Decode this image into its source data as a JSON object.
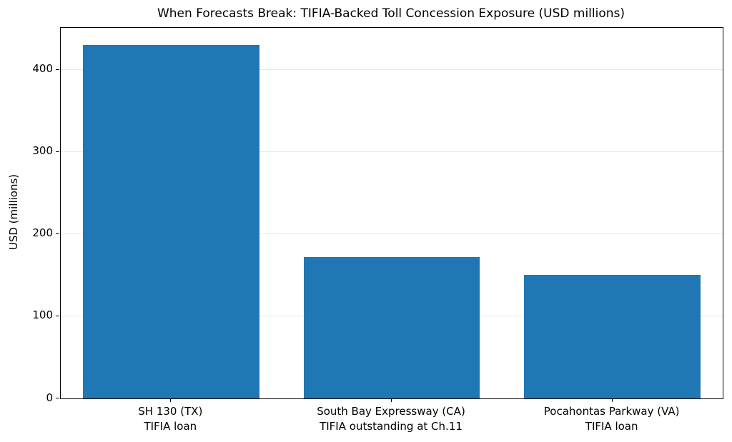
{
  "chart_data": {
    "type": "bar",
    "title": "When Forecasts Break: TIFIA-Backed Toll Concession Exposure (USD millions)",
    "categories": [
      "SH 130 (TX)\nTIFIA loan",
      "South Bay Expressway (CA)\nTIFIA outstanding at Ch.11",
      "Pocahontas Parkway (VA)\nTIFIA loan"
    ],
    "values": [
      430,
      172,
      150
    ],
    "xlabel": "",
    "ylabel": "USD (millions)",
    "ylim": [
      0,
      451
    ],
    "yticks": [
      0,
      100,
      200,
      300,
      400
    ],
    "bar_color": "#1f77b4",
    "bar_width_fraction": 0.8,
    "grid": "horizontal",
    "grid_color": "#e7e7e7",
    "legend": "none"
  }
}
